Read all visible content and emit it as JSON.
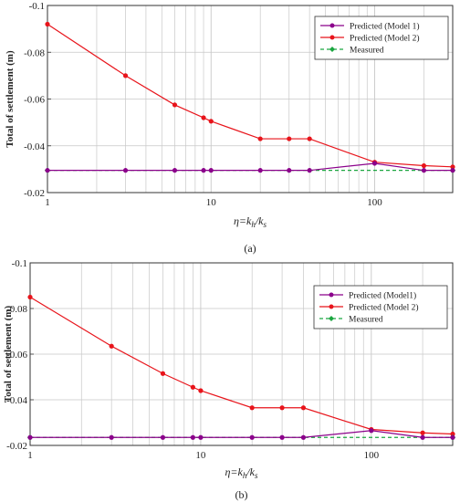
{
  "chart_data": [
    {
      "type": "line",
      "panel_label": "(a)",
      "xlabel_main": "η=k",
      "xlabel_sub1": "h",
      "xlabel_mid": "/k",
      "xlabel_sub2": "s",
      "ylabel": "Total of settlement (m)",
      "xscale": "log",
      "xlim": [
        1,
        300
      ],
      "ylim": [
        -0.1,
        -0.02
      ],
      "y_inverted": true,
      "xticks": [
        {
          "v": 1,
          "label": "1"
        },
        {
          "v": 10,
          "label": "10"
        },
        {
          "v": 100,
          "label": "100"
        }
      ],
      "yticks": [
        {
          "v": -0.1,
          "label": "-0.1"
        },
        {
          "v": -0.08,
          "label": "-0.08"
        },
        {
          "v": -0.06,
          "label": "-0.06"
        },
        {
          "v": -0.04,
          "label": "-0.04"
        },
        {
          "v": -0.02,
          "label": "-0.02"
        }
      ],
      "grid": true,
      "legend_position": "top-right",
      "series": [
        {
          "name": "Predicted (Model 1)",
          "color": "#8B008B",
          "marker": "circle",
          "dash": "solid",
          "x": [
            1,
            3,
            6,
            9,
            10,
            20,
            30,
            40,
            100,
            200,
            300
          ],
          "y": [
            -0.0295,
            -0.0295,
            -0.0295,
            -0.0295,
            -0.0295,
            -0.0295,
            -0.0295,
            -0.0295,
            -0.0325,
            -0.0295,
            -0.0295
          ]
        },
        {
          "name": "Predicted (Model 2)",
          "color": "#E8141B",
          "marker": "circle",
          "dash": "solid",
          "x": [
            1,
            3,
            6,
            9,
            10,
            20,
            30,
            40,
            100,
            200,
            300
          ],
          "y": [
            -0.092,
            -0.07,
            -0.0575,
            -0.052,
            -0.0505,
            -0.043,
            -0.043,
            -0.043,
            -0.033,
            -0.0315,
            -0.031
          ]
        },
        {
          "name": "Measured",
          "color": "#1BA640",
          "marker": "diamond",
          "dash": "dashed",
          "x": [
            1,
            300
          ],
          "y": [
            -0.0295,
            -0.0295
          ]
        }
      ]
    },
    {
      "type": "line",
      "panel_label": "(b)",
      "xlabel_main": "η=k",
      "xlabel_sub1": "h",
      "xlabel_mid": "/k",
      "xlabel_sub2": "s",
      "ylabel": "Total of settlement (m)",
      "xscale": "log",
      "xlim": [
        1,
        300
      ],
      "ylim": [
        -0.1,
        -0.02
      ],
      "y_inverted": true,
      "xticks": [
        {
          "v": 1,
          "label": "1"
        },
        {
          "v": 10,
          "label": "10"
        },
        {
          "v": 100,
          "label": "100"
        }
      ],
      "yticks": [
        {
          "v": -0.1,
          "label": "-0.1"
        },
        {
          "v": -0.08,
          "label": "-0.08"
        },
        {
          "v": -0.06,
          "label": "-0.06"
        },
        {
          "v": -0.04,
          "label": "-0.04"
        },
        {
          "v": -0.02,
          "label": "-0.02"
        }
      ],
      "grid": true,
      "legend_position": "top-right",
      "series": [
        {
          "name": "Predicted (Model1)",
          "color": "#8B008B",
          "marker": "circle",
          "dash": "solid",
          "x": [
            1,
            3,
            6,
            9,
            10,
            20,
            30,
            40,
            100,
            200,
            300
          ],
          "y": [
            -0.0235,
            -0.0235,
            -0.0235,
            -0.0235,
            -0.0235,
            -0.0235,
            -0.0235,
            -0.0235,
            -0.0265,
            -0.0235,
            -0.0235
          ]
        },
        {
          "name": "Predicted (Model 2)",
          "color": "#E8141B",
          "marker": "circle",
          "dash": "solid",
          "x": [
            1,
            3,
            6,
            9,
            10,
            20,
            30,
            40,
            100,
            200,
            300
          ],
          "y": [
            -0.085,
            -0.0635,
            -0.0515,
            -0.0455,
            -0.044,
            -0.0365,
            -0.0365,
            -0.0365,
            -0.027,
            -0.0255,
            -0.025
          ]
        },
        {
          "name": "Measured",
          "color": "#1BA640",
          "marker": "diamond",
          "dash": "dashed",
          "x": [
            1,
            300
          ],
          "y": [
            -0.0235,
            -0.0235
          ]
        }
      ]
    }
  ]
}
